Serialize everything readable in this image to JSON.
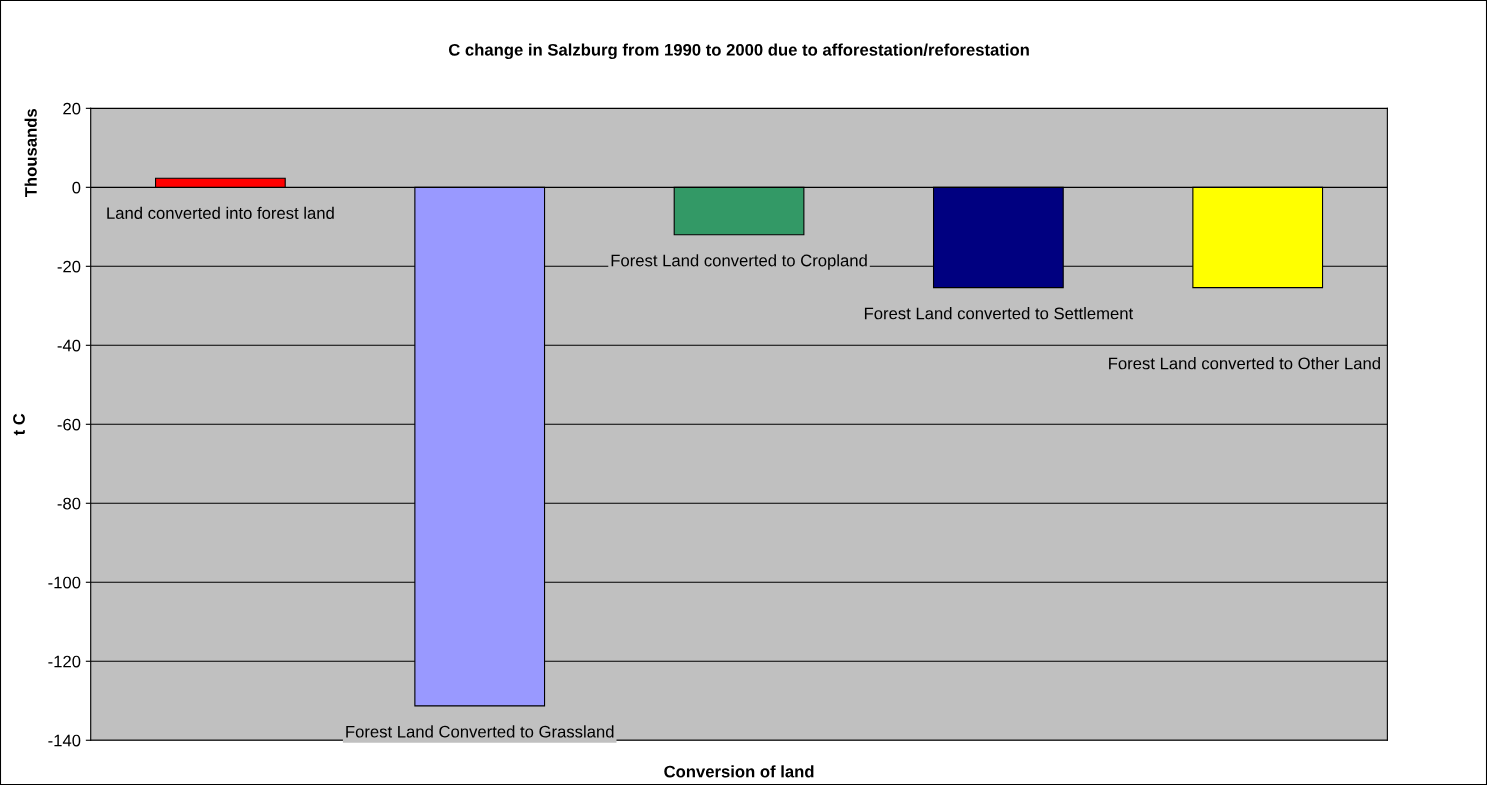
{
  "chart_data": {
    "type": "bar",
    "title": "C change in Salzburg from 1990 to 2000 due to afforestation/reforestation",
    "xlabel": "Conversion of land",
    "ylabel": "t C",
    "annotations": [
      "Thousands"
    ],
    "categories": [
      "Land converted into forest land",
      "Forest Land Converted to Grassland",
      "Forest Land converted to Cropland",
      "Forest Land converted to Settlement",
      "Forest Land converted to Other Land"
    ],
    "values": [
      2.3,
      -131.3,
      -12,
      -25.4,
      -25.4
    ],
    "colors": [
      "#ff0000",
      "#9999ff",
      "#339966",
      "#000080",
      "#ffff00"
    ],
    "ylim": [
      -140,
      20
    ],
    "yticks": [
      -140,
      -120,
      -100,
      -80,
      -60,
      -40,
      -20,
      0,
      20
    ],
    "grid": "y",
    "tick_labels": "y"
  }
}
